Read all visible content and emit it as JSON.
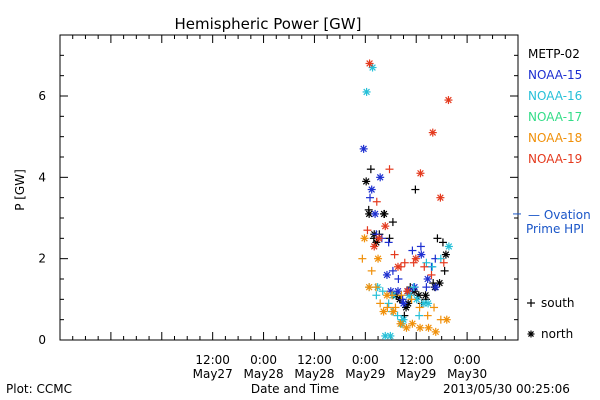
{
  "chart_data": {
    "type": "scatter",
    "title": "Hemispheric Power [GW]",
    "xlabel": "Date and Time",
    "ylabel": "P [GW]",
    "ylim": [
      0,
      7.5
    ],
    "xlim_hours": [
      0,
      108
    ],
    "x_unit": "hours after 2013-05-26 00:00 UT",
    "x_ticks": [
      {
        "x": 36,
        "line1": "12:00",
        "line2": "May27"
      },
      {
        "x": 48,
        "line1": "0:00",
        "line2": "May28"
      },
      {
        "x": 60,
        "line1": "12:00",
        "line2": "May28"
      },
      {
        "x": 72,
        "line1": "0:00",
        "line2": "May29"
      },
      {
        "x": 84,
        "line1": "12:00",
        "line2": "May29"
      },
      {
        "x": 96,
        "line1": "0:00",
        "line2": "May30"
      }
    ],
    "y_ticks": [
      0,
      2,
      4,
      6
    ],
    "y_tick_labels": [
      "0",
      "2",
      "4",
      "6"
    ],
    "legend_position": "right",
    "series": [
      {
        "name": "METP-02",
        "color": "#000000",
        "south": [
          [
            72.8,
            3.2
          ],
          [
            73.3,
            4.2
          ],
          [
            74.0,
            2.5
          ],
          [
            75.3,
            2.6
          ],
          [
            76.5,
            3.1
          ],
          [
            77.7,
            2.5
          ],
          [
            78.5,
            2.9
          ],
          [
            80.4,
            1.0
          ],
          [
            81.2,
            0.6
          ],
          [
            82.6,
            1.3
          ],
          [
            83.8,
            3.7
          ],
          [
            85.3,
            0.9
          ],
          [
            86.3,
            1.0
          ],
          [
            88.0,
            1.4
          ],
          [
            89.0,
            2.5
          ],
          [
            90.3,
            2.4
          ],
          [
            90.7,
            1.7
          ]
        ],
        "north": [
          [
            72.2,
            3.9
          ],
          [
            72.9,
            3.1
          ],
          [
            74.1,
            2.6
          ],
          [
            74.6,
            2.4
          ],
          [
            76.4,
            3.1
          ],
          [
            79.3,
            1.1
          ],
          [
            80.1,
            1.0
          ],
          [
            81.6,
            0.8
          ],
          [
            82.1,
            0.9
          ],
          [
            83.5,
            1.2
          ],
          [
            84.6,
            1.1
          ],
          [
            86.2,
            1.1
          ],
          [
            88.4,
            1.3
          ],
          [
            89.5,
            1.4
          ],
          [
            91.0,
            2.1
          ]
        ]
      },
      {
        "name": "NOAA-15",
        "color": "#1d2fd0",
        "south": [
          [
            73.1,
            3.5
          ],
          [
            74.6,
            2.6
          ],
          [
            75.9,
            2.5
          ],
          [
            77.5,
            2.4
          ],
          [
            78.5,
            1.7
          ],
          [
            79.8,
            1.5
          ],
          [
            80.8,
            1.0
          ],
          [
            82.0,
            1.2
          ],
          [
            83.1,
            2.2
          ],
          [
            85.1,
            2.3
          ],
          [
            86.4,
            1.3
          ],
          [
            87.6,
            1.8
          ],
          [
            88.5,
            2.0
          ]
        ],
        "north": [
          [
            71.6,
            4.7
          ],
          [
            73.5,
            3.7
          ],
          [
            74.3,
            3.1
          ],
          [
            75.5,
            4.0
          ],
          [
            77.1,
            1.6
          ],
          [
            78.0,
            1.2
          ],
          [
            79.7,
            1.2
          ],
          [
            81.0,
            0.9
          ],
          [
            82.2,
            1.2
          ],
          [
            83.6,
            1.3
          ],
          [
            85.2,
            2.1
          ],
          [
            86.7,
            1.5
          ],
          [
            88.6,
            1.3
          ]
        ]
      },
      {
        "name": "NOAA-16",
        "color": "#27c0d8",
        "south": [
          [
            72.9,
            1.3
          ],
          [
            74.6,
            1.1
          ],
          [
            76.1,
            1.2
          ],
          [
            77.5,
            0.9
          ],
          [
            78.3,
            0.7
          ],
          [
            79.6,
            0.6
          ],
          [
            80.6,
            0.5
          ],
          [
            82.6,
            1.1
          ],
          [
            83.4,
            1.3
          ],
          [
            84.7,
            0.6
          ],
          [
            86.4,
            1.9
          ],
          [
            87.8,
            1.8
          ],
          [
            89.8,
            2.0
          ]
        ],
        "north": [
          [
            72.3,
            6.1
          ],
          [
            73.7,
            6.7
          ],
          [
            74.9,
            1.3
          ],
          [
            76.7,
            0.1
          ],
          [
            77.9,
            0.1
          ],
          [
            78.5,
            1.1
          ],
          [
            80.6,
            0.4
          ],
          [
            81.0,
            0.5
          ],
          [
            82.3,
            1.1
          ],
          [
            84.1,
            1.0
          ],
          [
            85.8,
            0.9
          ],
          [
            86.8,
            0.9
          ],
          [
            91.7,
            2.3
          ]
        ]
      },
      {
        "name": "NOAA-17",
        "color": "#33dd88",
        "south": [],
        "north": []
      },
      {
        "name": "NOAA-18",
        "color": "#f0900a",
        "south": [
          [
            71.3,
            2.0
          ],
          [
            73.5,
            1.7
          ],
          [
            74.5,
            1.3
          ],
          [
            75.5,
            0.9
          ],
          [
            77.2,
            0.8
          ],
          [
            78.3,
            1.1
          ],
          [
            79.1,
            0.8
          ],
          [
            80.5,
            1.1
          ],
          [
            82.9,
            1.0
          ],
          [
            84.8,
            0.8
          ],
          [
            86.7,
            0.6
          ],
          [
            88.2,
            0.8
          ],
          [
            89.8,
            0.5
          ]
        ],
        "north": [
          [
            71.8,
            2.5
          ],
          [
            72.9,
            1.3
          ],
          [
            75.0,
            2.0
          ],
          [
            76.3,
            0.7
          ],
          [
            77.1,
            1.1
          ],
          [
            78.6,
            0.7
          ],
          [
            80.3,
            0.4
          ],
          [
            81.7,
            0.3
          ],
          [
            83.1,
            0.4
          ],
          [
            84.9,
            0.3
          ],
          [
            86.9,
            0.3
          ],
          [
            88.6,
            0.2
          ],
          [
            91.2,
            0.5
          ]
        ]
      },
      {
        "name": "NOAA-19",
        "color": "#e43a1e",
        "south": [
          [
            72.5,
            2.7
          ],
          [
            74.7,
            3.4
          ],
          [
            77.7,
            4.2
          ],
          [
            78.9,
            2.1
          ],
          [
            80.4,
            1.8
          ],
          [
            81.3,
            1.9
          ],
          [
            83.4,
            1.9
          ],
          [
            85.9,
            1.8
          ],
          [
            87.6,
            1.6
          ],
          [
            90.5,
            1.9
          ]
        ],
        "north": [
          [
            73.0,
            6.8
          ],
          [
            74.1,
            2.3
          ],
          [
            75.2,
            2.5
          ],
          [
            76.7,
            2.8
          ],
          [
            79.7,
            1.8
          ],
          [
            81.9,
            1.2
          ],
          [
            83.9,
            2.0
          ],
          [
            85.0,
            4.1
          ],
          [
            87.9,
            5.1
          ],
          [
            89.7,
            3.5
          ],
          [
            91.6,
            5.9
          ]
        ]
      }
    ],
    "symbol_legend": [
      {
        "symbol": "+",
        "label": "south"
      },
      {
        "symbol": "*",
        "label": "north"
      }
    ],
    "annotation": {
      "line1": "— Ovation",
      "line2": "Prime HPI",
      "color": "#1a56c8",
      "y": 3.1
    },
    "footer_left": "Plot: CCMC",
    "footer_right": "2013/05/30 00:25:06"
  }
}
